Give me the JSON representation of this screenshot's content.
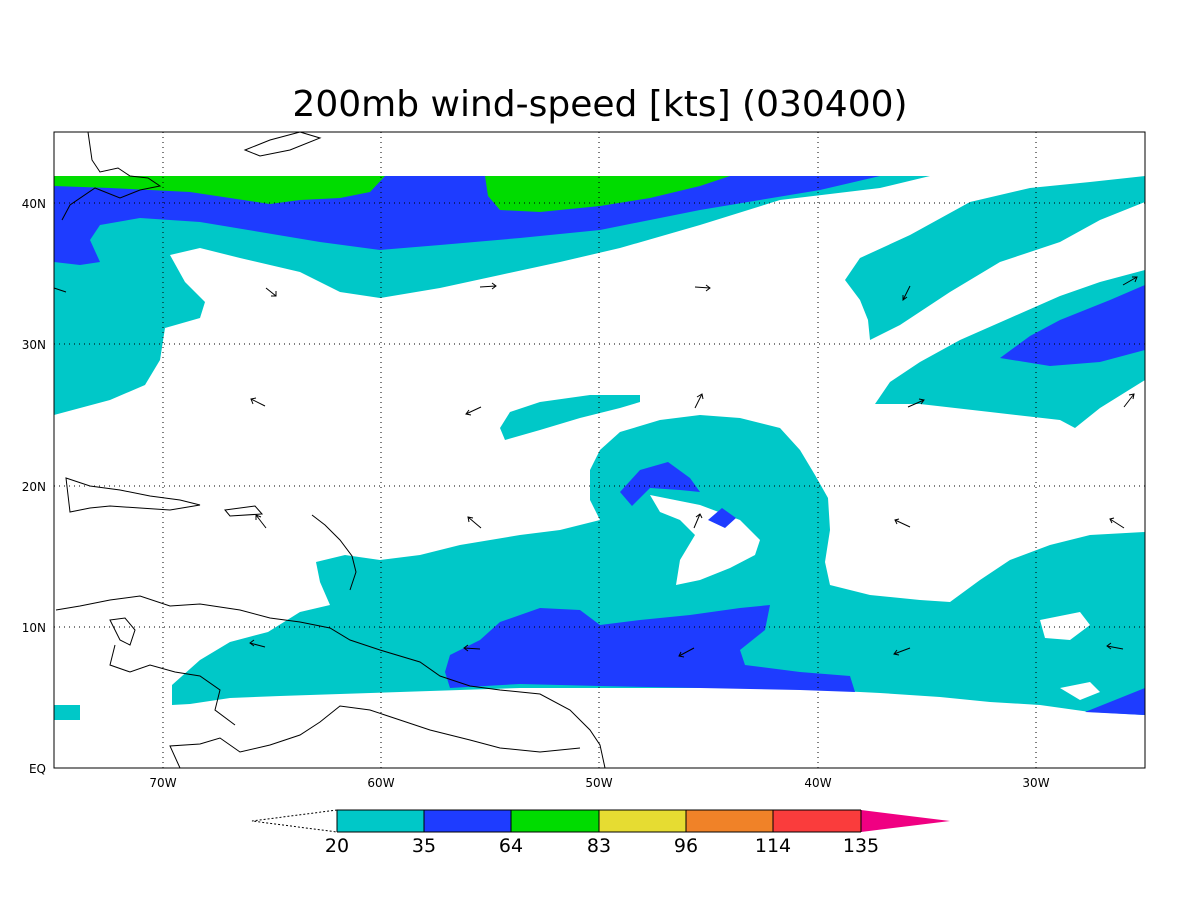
{
  "title": "200mb wind-speed [kts] (030400)",
  "map": {
    "lon_range": [
      -75,
      -25
    ],
    "lat_range": [
      0,
      45
    ],
    "lon_ticks": [
      {
        "value": -70,
        "label": "70W"
      },
      {
        "value": -60,
        "label": "60W"
      },
      {
        "value": -50,
        "label": "50W"
      },
      {
        "value": -40,
        "label": "40W"
      },
      {
        "value": -30,
        "label": "30W"
      }
    ],
    "lat_ticks": [
      {
        "value": 40,
        "label": "40N"
      },
      {
        "value": 30,
        "label": "30N"
      },
      {
        "value": 20,
        "label": "20N"
      },
      {
        "value": 10,
        "label": "10N"
      },
      {
        "value": 0,
        "label": "EQ"
      }
    ],
    "grid": "dotted"
  },
  "colorbar": {
    "labels": [
      "20",
      "35",
      "64",
      "83",
      "96",
      "114",
      "135"
    ],
    "colors": [
      "#00c8c8",
      "#1e3cff",
      "#00dc00",
      "#e6dc32",
      "#f08228",
      "#fa3c3c",
      "#f00082"
    ]
  }
}
